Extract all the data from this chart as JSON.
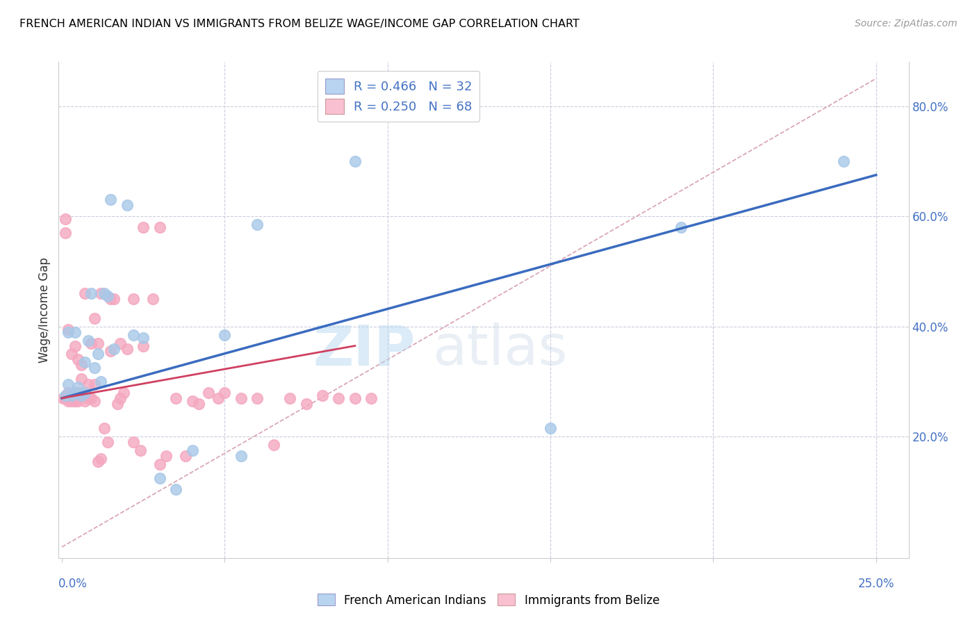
{
  "title": "FRENCH AMERICAN INDIAN VS IMMIGRANTS FROM BELIZE WAGE/INCOME GAP CORRELATION CHART",
  "source": "Source: ZipAtlas.com",
  "ylabel": "Wage/Income Gap",
  "y_ticks": [
    "20.0%",
    "40.0%",
    "60.0%",
    "80.0%"
  ],
  "y_tick_vals": [
    0.2,
    0.4,
    0.6,
    0.8
  ],
  "watermark_zip": "ZIP",
  "watermark_atlas": "atlas",
  "legend_row1": "R = 0.466   N = 32",
  "legend_row2": "R = 0.250   N = 68",
  "blue_scatter_x": [
    0.001,
    0.002,
    0.002,
    0.003,
    0.004,
    0.004,
    0.005,
    0.006,
    0.007,
    0.007,
    0.008,
    0.009,
    0.01,
    0.011,
    0.012,
    0.013,
    0.014,
    0.015,
    0.016,
    0.02,
    0.022,
    0.025,
    0.03,
    0.035,
    0.04,
    0.05,
    0.055,
    0.06,
    0.09,
    0.15,
    0.19,
    0.24
  ],
  "blue_scatter_y": [
    0.275,
    0.295,
    0.39,
    0.275,
    0.28,
    0.39,
    0.29,
    0.275,
    0.335,
    0.28,
    0.375,
    0.46,
    0.325,
    0.35,
    0.3,
    0.46,
    0.455,
    0.63,
    0.36,
    0.62,
    0.385,
    0.38,
    0.125,
    0.105,
    0.175,
    0.385,
    0.165,
    0.585,
    0.7,
    0.215,
    0.58,
    0.7
  ],
  "pink_scatter_x": [
    0.0005,
    0.001,
    0.001,
    0.001,
    0.002,
    0.002,
    0.002,
    0.003,
    0.003,
    0.003,
    0.004,
    0.004,
    0.004,
    0.005,
    0.005,
    0.005,
    0.006,
    0.006,
    0.006,
    0.007,
    0.007,
    0.007,
    0.008,
    0.008,
    0.009,
    0.009,
    0.01,
    0.01,
    0.011,
    0.011,
    0.012,
    0.013,
    0.014,
    0.015,
    0.016,
    0.017,
    0.018,
    0.019,
    0.02,
    0.022,
    0.024,
    0.025,
    0.028,
    0.03,
    0.032,
    0.035,
    0.038,
    0.04,
    0.042,
    0.045,
    0.048,
    0.05,
    0.055,
    0.06,
    0.065,
    0.07,
    0.075,
    0.08,
    0.085,
    0.09,
    0.095,
    0.01,
    0.012,
    0.015,
    0.018,
    0.022,
    0.025,
    0.03
  ],
  "pink_scatter_y": [
    0.27,
    0.27,
    0.595,
    0.57,
    0.265,
    0.28,
    0.395,
    0.27,
    0.265,
    0.35,
    0.265,
    0.28,
    0.365,
    0.265,
    0.28,
    0.34,
    0.28,
    0.305,
    0.33,
    0.265,
    0.28,
    0.46,
    0.27,
    0.295,
    0.27,
    0.37,
    0.265,
    0.295,
    0.37,
    0.155,
    0.16,
    0.215,
    0.19,
    0.355,
    0.45,
    0.26,
    0.27,
    0.28,
    0.36,
    0.19,
    0.175,
    0.365,
    0.45,
    0.15,
    0.165,
    0.27,
    0.165,
    0.265,
    0.26,
    0.28,
    0.27,
    0.28,
    0.27,
    0.27,
    0.185,
    0.27,
    0.26,
    0.275,
    0.27,
    0.27,
    0.27,
    0.415,
    0.46,
    0.45,
    0.37,
    0.45,
    0.58,
    0.58
  ],
  "blue_line_x": [
    0.0,
    0.25
  ],
  "blue_line_y": [
    0.27,
    0.675
  ],
  "pink_line_x": [
    0.0,
    0.09
  ],
  "pink_line_y": [
    0.27,
    0.365
  ],
  "diag_line_x": [
    0.0,
    0.25
  ],
  "diag_line_y": [
    0.0,
    0.85
  ],
  "xlim": [
    -0.001,
    0.26
  ],
  "ylim": [
    -0.02,
    0.88
  ],
  "blue_scatter_color": "#a8c8e8",
  "pink_scatter_color": "#f4a8c0",
  "blue_line_color": "#3a6bbf",
  "pink_line_color": "#d04060",
  "diag_line_color": "#d8a0b0",
  "title_fontsize": 12,
  "source_fontsize": 10,
  "tick_color": "#4472c4",
  "ylabel_color": "#333333",
  "legend_blue_face": "#b8d4f0",
  "legend_pink_face": "#f8c0d0"
}
